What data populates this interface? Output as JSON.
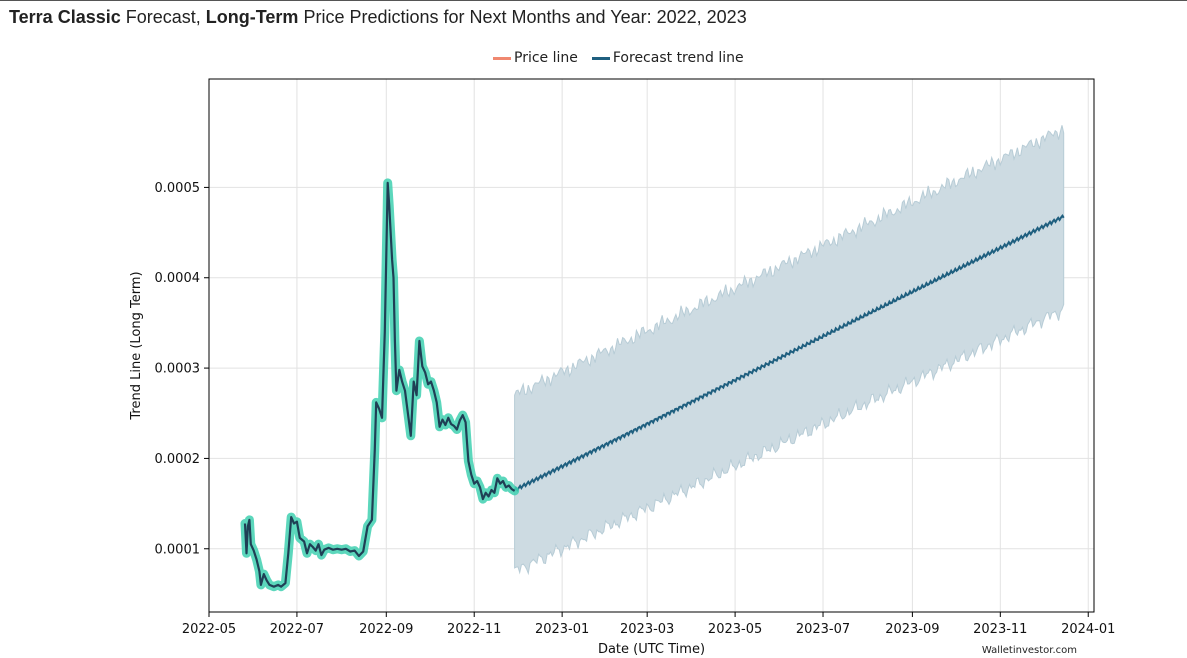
{
  "page": {
    "title_bold_1": "Terra Classic",
    "title_mid": " Forecast, ",
    "title_bold_2": "Long-Term",
    "title_rest": " Price Predictions for Next Months and Year: 2022, 2023",
    "watermark": "Walletinvestor.com"
  },
  "legend": {
    "price_label": "Price line",
    "forecast_label": "Forecast trend line"
  },
  "colors": {
    "price_line": "#1f3f55",
    "price_halo": "#40d0b0",
    "price_legend": "#f08870",
    "forecast_line": "#1f5f7f",
    "forecast_band": "#cddbe2",
    "forecast_band_edge": "#b7ccd6",
    "grid": "#e2e2e2"
  },
  "chart_data": {
    "type": "line",
    "xlabel": "Date (UTC Time)",
    "ylabel": "Trend Line (Long Term)",
    "x_ticks": [
      "2022-05",
      "2022-07",
      "2022-09",
      "2022-11",
      "2023-01",
      "2023-03",
      "2023-05",
      "2023-07",
      "2023-09",
      "2023-11",
      "2024-01"
    ],
    "y_ticks": [
      "0.0001",
      "0.0002",
      "0.0003",
      "0.0004",
      "0.0005"
    ],
    "xlim": [
      "2022-05-01",
      "2024-01-05"
    ],
    "ylim": [
      3e-05,
      0.00062
    ],
    "grid": true,
    "legend_position": "top-center",
    "series": [
      {
        "name": "Price line",
        "points": [
          [
            "2022-05-26",
            0.000128
          ],
          [
            "2022-05-27",
            9.5e-05
          ],
          [
            "2022-05-28",
            0.000125
          ],
          [
            "2022-05-29",
            0.000132
          ],
          [
            "2022-05-30",
            0.000105
          ],
          [
            "2022-06-01",
            9.8e-05
          ],
          [
            "2022-06-03",
            8.8e-05
          ],
          [
            "2022-06-05",
            7.5e-05
          ],
          [
            "2022-06-06",
            6e-05
          ],
          [
            "2022-06-08",
            7.2e-05
          ],
          [
            "2022-06-10",
            6.5e-05
          ],
          [
            "2022-06-12",
            6e-05
          ],
          [
            "2022-06-15",
            5.8e-05
          ],
          [
            "2022-06-18",
            6e-05
          ],
          [
            "2022-06-20",
            5.8e-05
          ],
          [
            "2022-06-23",
            6.2e-05
          ],
          [
            "2022-06-25",
            9.5e-05
          ],
          [
            "2022-06-27",
            0.000135
          ],
          [
            "2022-06-29",
            0.000128
          ],
          [
            "2022-07-01",
            0.00013
          ],
          [
            "2022-07-03",
            0.000112
          ],
          [
            "2022-07-06",
            0.000108
          ],
          [
            "2022-07-08",
            9.5e-05
          ],
          [
            "2022-07-10",
            0.000105
          ],
          [
            "2022-07-12",
            0.000102
          ],
          [
            "2022-07-14",
            9.8e-05
          ],
          [
            "2022-07-16",
            0.000105
          ],
          [
            "2022-07-18",
            9.3e-05
          ],
          [
            "2022-07-20",
            9.9e-05
          ],
          [
            "2022-07-23",
            0.000101
          ],
          [
            "2022-07-26",
            9.9e-05
          ],
          [
            "2022-07-29",
            0.0001
          ],
          [
            "2022-08-01",
            9.9e-05
          ],
          [
            "2022-08-04",
            0.0001
          ],
          [
            "2022-08-07",
            9.7e-05
          ],
          [
            "2022-08-10",
            9.8e-05
          ],
          [
            "2022-08-13",
            9.2e-05
          ],
          [
            "2022-08-16",
            9.7e-05
          ],
          [
            "2022-08-19",
            0.000125
          ],
          [
            "2022-08-22",
            0.000132
          ],
          [
            "2022-08-24",
            0.00021
          ],
          [
            "2022-08-25",
            0.000262
          ],
          [
            "2022-08-27",
            0.000255
          ],
          [
            "2022-08-29",
            0.000245
          ],
          [
            "2022-08-31",
            0.00034
          ],
          [
            "2022-09-02",
            0.000505
          ],
          [
            "2022-09-03",
            0.00048
          ],
          [
            "2022-09-05",
            0.00042
          ],
          [
            "2022-09-06",
            0.0004
          ],
          [
            "2022-09-07",
            0.00033
          ],
          [
            "2022-09-08",
            0.000275
          ],
          [
            "2022-09-10",
            0.000298
          ],
          [
            "2022-09-12",
            0.000285
          ],
          [
            "2022-09-14",
            0.000275
          ],
          [
            "2022-09-16",
            0.00025
          ],
          [
            "2022-09-18",
            0.000225
          ],
          [
            "2022-09-20",
            0.000285
          ],
          [
            "2022-09-22",
            0.00027
          ],
          [
            "2022-09-24",
            0.00033
          ],
          [
            "2022-09-26",
            0.000302
          ],
          [
            "2022-09-28",
            0.000295
          ],
          [
            "2022-09-30",
            0.000282
          ],
          [
            "2022-10-02",
            0.000285
          ],
          [
            "2022-10-04",
            0.000275
          ],
          [
            "2022-10-06",
            0.000262
          ],
          [
            "2022-10-08",
            0.000235
          ],
          [
            "2022-10-10",
            0.000243
          ],
          [
            "2022-10-12",
            0.000237
          ],
          [
            "2022-10-14",
            0.000245
          ],
          [
            "2022-10-16",
            0.000238
          ],
          [
            "2022-10-18",
            0.000236
          ],
          [
            "2022-10-20",
            0.000232
          ],
          [
            "2022-10-22",
            0.000242
          ],
          [
            "2022-10-24",
            0.000248
          ],
          [
            "2022-10-26",
            0.00024
          ],
          [
            "2022-10-27",
            0.000218
          ],
          [
            "2022-10-28",
            0.000197
          ],
          [
            "2022-10-30",
            0.000182
          ],
          [
            "2022-11-01",
            0.000172
          ],
          [
            "2022-11-03",
            0.000175
          ],
          [
            "2022-11-05",
            0.000168
          ],
          [
            "2022-11-07",
            0.000155
          ],
          [
            "2022-11-09",
            0.000162
          ],
          [
            "2022-11-11",
            0.000158
          ],
          [
            "2022-11-13",
            0.000165
          ],
          [
            "2022-11-15",
            0.000162
          ],
          [
            "2022-11-17",
            0.000178
          ],
          [
            "2022-11-19",
            0.000172
          ],
          [
            "2022-11-21",
            0.000175
          ],
          [
            "2022-11-23",
            0.000168
          ],
          [
            "2022-11-25",
            0.00017
          ],
          [
            "2022-11-27",
            0.000166
          ],
          [
            "2022-11-29",
            0.000164
          ]
        ]
      },
      {
        "name": "Forecast trend line",
        "start": [
          "2022-11-29",
          0.000165
        ],
        "end": [
          "2023-12-15",
          0.000468
        ]
      }
    ],
    "forecast_band": {
      "start": {
        "date": "2022-11-29",
        "low": 7.5e-05,
        "high": 0.00027
      },
      "end": {
        "date": "2023-12-15",
        "low": 0.000365,
        "high": 0.000565
      }
    }
  }
}
